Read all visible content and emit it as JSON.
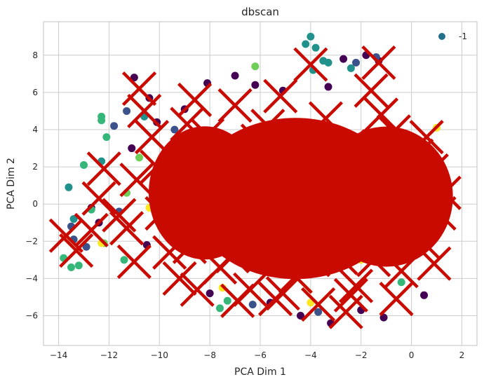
{
  "chart_data": {
    "type": "scatter",
    "title": "dbscan",
    "xlabel": "PCA Dim 1",
    "ylabel": "PCA Dim 2",
    "xlim": [
      -14.6,
      2.6
    ],
    "ylim": [
      -7.6,
      9.8
    ],
    "x_ticks": [
      -14,
      -12,
      -10,
      -8,
      -6,
      -4,
      -2,
      0,
      2
    ],
    "y_ticks": [
      -6,
      -4,
      -2,
      0,
      2,
      4,
      6,
      8
    ],
    "x_tick_labels": [
      "−14",
      "−12",
      "−10",
      "−8",
      "−6",
      "−4",
      "−2",
      "0",
      "2"
    ],
    "y_tick_labels": [
      "−6",
      "−4",
      "−2",
      "0",
      "2",
      "4",
      "6",
      "8"
    ],
    "grid": true,
    "legend": {
      "entries": [
        "-1"
      ],
      "placement": "top-right",
      "marker_color": "#21718c"
    },
    "series": [
      {
        "marker": "x",
        "color": "#c80a00",
        "description_of_density": "dense overlapping mass",
        "points": [
          [
            -13.7,
            -1.7
          ],
          [
            -13.3,
            -2.5
          ],
          [
            -12.4,
            0.3
          ],
          [
            -12.2,
            1.9
          ],
          [
            -11.3,
            -1.3
          ],
          [
            -11.0,
            -3.1
          ],
          [
            -10.8,
            6.2
          ],
          [
            -10.6,
            5.0
          ],
          [
            -10.3,
            3.6
          ],
          [
            -10.1,
            2.0
          ],
          [
            -9.9,
            -0.5
          ],
          [
            -9.6,
            -2.6
          ],
          [
            -9.2,
            -4.0
          ],
          [
            -8.9,
            4.3
          ],
          [
            -8.6,
            5.6
          ],
          [
            -8.3,
            0.9
          ],
          [
            -8.0,
            -1.5
          ],
          [
            -7.6,
            -3.4
          ],
          [
            -7.3,
            2.7
          ],
          [
            -7.0,
            5.3
          ],
          [
            -6.7,
            -0.2
          ],
          [
            -6.4,
            -4.6
          ],
          [
            -6.1,
            3.4
          ],
          [
            -5.8,
            1.0
          ],
          [
            -5.5,
            -2.4
          ],
          [
            -5.2,
            5.8
          ],
          [
            -4.9,
            -1.1
          ],
          [
            -4.6,
            -3.9
          ],
          [
            -4.3,
            2.1
          ],
          [
            -4.0,
            7.5
          ],
          [
            -3.7,
            -5.4
          ],
          [
            -3.4,
            4.6
          ],
          [
            -3.1,
            0.4
          ],
          [
            -2.8,
            -2.9
          ],
          [
            -2.5,
            3.1
          ],
          [
            -2.2,
            -4.4
          ],
          [
            -1.9,
            1.5
          ],
          [
            -1.6,
            6.1
          ],
          [
            -1.3,
            7.6
          ],
          [
            -1.0,
            -1.7
          ],
          [
            -0.7,
            3.9
          ],
          [
            -0.4,
            -3.6
          ],
          [
            -0.1,
            0.9
          ],
          [
            0.2,
            2.6
          ],
          [
            0.5,
            -2.1
          ],
          [
            0.8,
            1.8
          ],
          [
            1.1,
            -0.5
          ],
          [
            1.3,
            0.6
          ],
          [
            -9.4,
            1.2
          ],
          [
            -8.8,
            -2.3
          ],
          [
            -8.1,
            3.7
          ],
          [
            -7.7,
            0.2
          ],
          [
            -7.1,
            -2.8
          ],
          [
            -6.6,
            1.9
          ],
          [
            -6.2,
            -1.2
          ],
          [
            -5.7,
            4.2
          ],
          [
            -5.1,
            -4.8
          ],
          [
            -4.5,
            0.6
          ],
          [
            -4.1,
            -2.1
          ],
          [
            -3.6,
            2.9
          ],
          [
            -3.2,
            -1.0
          ],
          [
            -2.6,
            -5.8
          ],
          [
            -2.1,
            0.0
          ],
          [
            -1.5,
            -3.0
          ],
          [
            -0.9,
            2.1
          ],
          [
            -0.3,
            -0.8
          ],
          [
            0.4,
            -1.0
          ],
          [
            0.9,
            -3.2
          ],
          [
            -10.9,
            1.3
          ],
          [
            -11.6,
            -0.6
          ],
          [
            -12.7,
            -1.4
          ],
          [
            -6.9,
            -5.2
          ],
          [
            -5.4,
            -5.1
          ],
          [
            -3.9,
            -3.0
          ],
          [
            -2.4,
            -4.9
          ],
          [
            -1.2,
            4.8
          ],
          [
            -0.6,
            -5.1
          ],
          [
            0.6,
            3.6
          ],
          [
            -4.7,
            3.6
          ],
          [
            -8.5,
            -4.6
          ]
        ]
      },
      {
        "marker": "o",
        "color": "#440154",
        "points": [
          [
            -11.0,
            6.8
          ],
          [
            -10.4,
            5.7
          ],
          [
            -9.0,
            5.1
          ],
          [
            -8.1,
            6.5
          ],
          [
            -7.0,
            6.9
          ],
          [
            -6.2,
            6.4
          ],
          [
            -5.1,
            6.1
          ],
          [
            -3.3,
            6.3
          ],
          [
            -2.7,
            7.8
          ],
          [
            -1.8,
            8.0
          ],
          [
            -1.3,
            7.7
          ],
          [
            -3.2,
            -6.4
          ],
          [
            -1.1,
            -6.1
          ],
          [
            -11.1,
            3.0
          ],
          [
            -10.5,
            -2.2
          ],
          [
            -12.7,
            -0.2
          ],
          [
            -8.0,
            -4.8
          ],
          [
            -5.6,
            -5.3
          ],
          [
            -2.0,
            -5.7
          ],
          [
            0.5,
            -4.9
          ],
          [
            -10.1,
            4.4
          ],
          [
            -4.4,
            -6.0
          ],
          [
            -12.4,
            -1.0
          ]
        ]
      },
      {
        "marker": "o",
        "color": "#3b528b",
        "points": [
          [
            -11.8,
            4.2
          ],
          [
            -11.3,
            5.0
          ],
          [
            -13.4,
            -1.9
          ],
          [
            -12.9,
            -2.3
          ],
          [
            -13.5,
            -1.2
          ],
          [
            -9.4,
            4.0
          ],
          [
            -1.4,
            7.9
          ],
          [
            -2.2,
            7.6
          ],
          [
            -6.3,
            -5.4
          ],
          [
            -3.7,
            -5.8
          ],
          [
            -11.6,
            -0.4
          ]
        ]
      },
      {
        "marker": "o",
        "color": "#21918c",
        "points": [
          [
            -4.0,
            9.0
          ],
          [
            -4.2,
            8.6
          ],
          [
            -3.8,
            8.4
          ],
          [
            -3.5,
            7.7
          ],
          [
            -3.3,
            7.6
          ],
          [
            -3.9,
            7.2
          ],
          [
            -13.6,
            0.9
          ],
          [
            -13.4,
            -0.8
          ],
          [
            -12.3,
            2.3
          ],
          [
            -2.4,
            7.3
          ],
          [
            -10.6,
            4.7
          ]
        ]
      },
      {
        "marker": "o",
        "color": "#35b779",
        "points": [
          [
            -13.8,
            -2.9
          ],
          [
            -13.5,
            -3.4
          ],
          [
            -13.2,
            -3.3
          ],
          [
            -12.3,
            4.7
          ],
          [
            -12.3,
            4.5
          ],
          [
            -12.1,
            3.6
          ],
          [
            -13.0,
            2.1
          ],
          [
            -12.7,
            -0.3
          ],
          [
            -7.6,
            -5.6
          ],
          [
            -7.3,
            -5.2
          ],
          [
            -11.4,
            -3.0
          ],
          [
            -0.4,
            -4.2
          ]
        ]
      },
      {
        "marker": "o",
        "color": "#6ece58",
        "points": [
          [
            -12.2,
            -2.1
          ],
          [
            -11.3,
            0.6
          ],
          [
            -10.8,
            2.5
          ],
          [
            -6.2,
            7.4
          ]
        ]
      },
      {
        "marker": "o",
        "color": "#fde725",
        "points": [
          [
            -12.3,
            -2.1
          ],
          [
            -10.4,
            -0.2
          ],
          [
            -9.8,
            1.0
          ],
          [
            -7.5,
            -4.5
          ],
          [
            -4.0,
            -5.3
          ],
          [
            -2.0,
            -3.0
          ],
          [
            0.1,
            3.1
          ],
          [
            1.0,
            4.1
          ]
        ]
      }
    ]
  }
}
